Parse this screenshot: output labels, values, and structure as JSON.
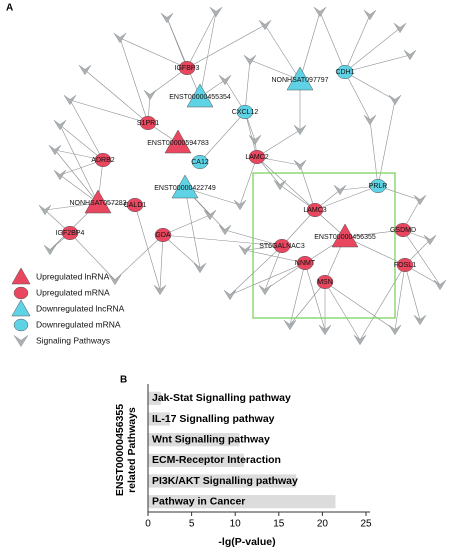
{
  "panel_a": {
    "label": "A",
    "nodes": [
      "ENST00000455354",
      "NONHSAT097797",
      "CDH1",
      "CXCL12",
      "IGFBP3",
      "S1PR1",
      "ENST00000594783",
      "ADRB2",
      "CA12",
      "ENST00000422749",
      "LAMC2",
      "NONHSAT057283",
      "CALD1",
      "IGF2BP4",
      "GDA",
      "LAMC3",
      "ST6GALNAC3",
      "NNMT",
      "PRLR",
      "GSDMD",
      "ENST00000456355",
      "MSN",
      "FOSL1"
    ],
    "legend": [
      "Upregulated lnRNA",
      "Upregulated mRNA",
      "Downregulated lncRNA",
      "Downregulated mRNA",
      "Signaling Pathways"
    ]
  },
  "chart_data": {
    "type": "bar",
    "label": "B",
    "categories": [
      "Jak-Stat Signalling pathway",
      "IL-17 Signalling pathway",
      "Wnt Signalling pathway",
      "ECM-Receptor Interaction",
      "PI3K/AKT Signalling pathway",
      "Pathway in Cancer"
    ],
    "values": [
      1.5,
      2.5,
      10.5,
      11,
      17,
      21.5
    ],
    "color": "#dcdcdc",
    "xlim": [
      0,
      25
    ],
    "xticks": [
      0,
      5,
      10,
      15,
      20,
      25
    ],
    "xlabel": "-lg(P-value)",
    "ylabel": [
      "ENST00000456355",
      "related Pathways"
    ]
  }
}
